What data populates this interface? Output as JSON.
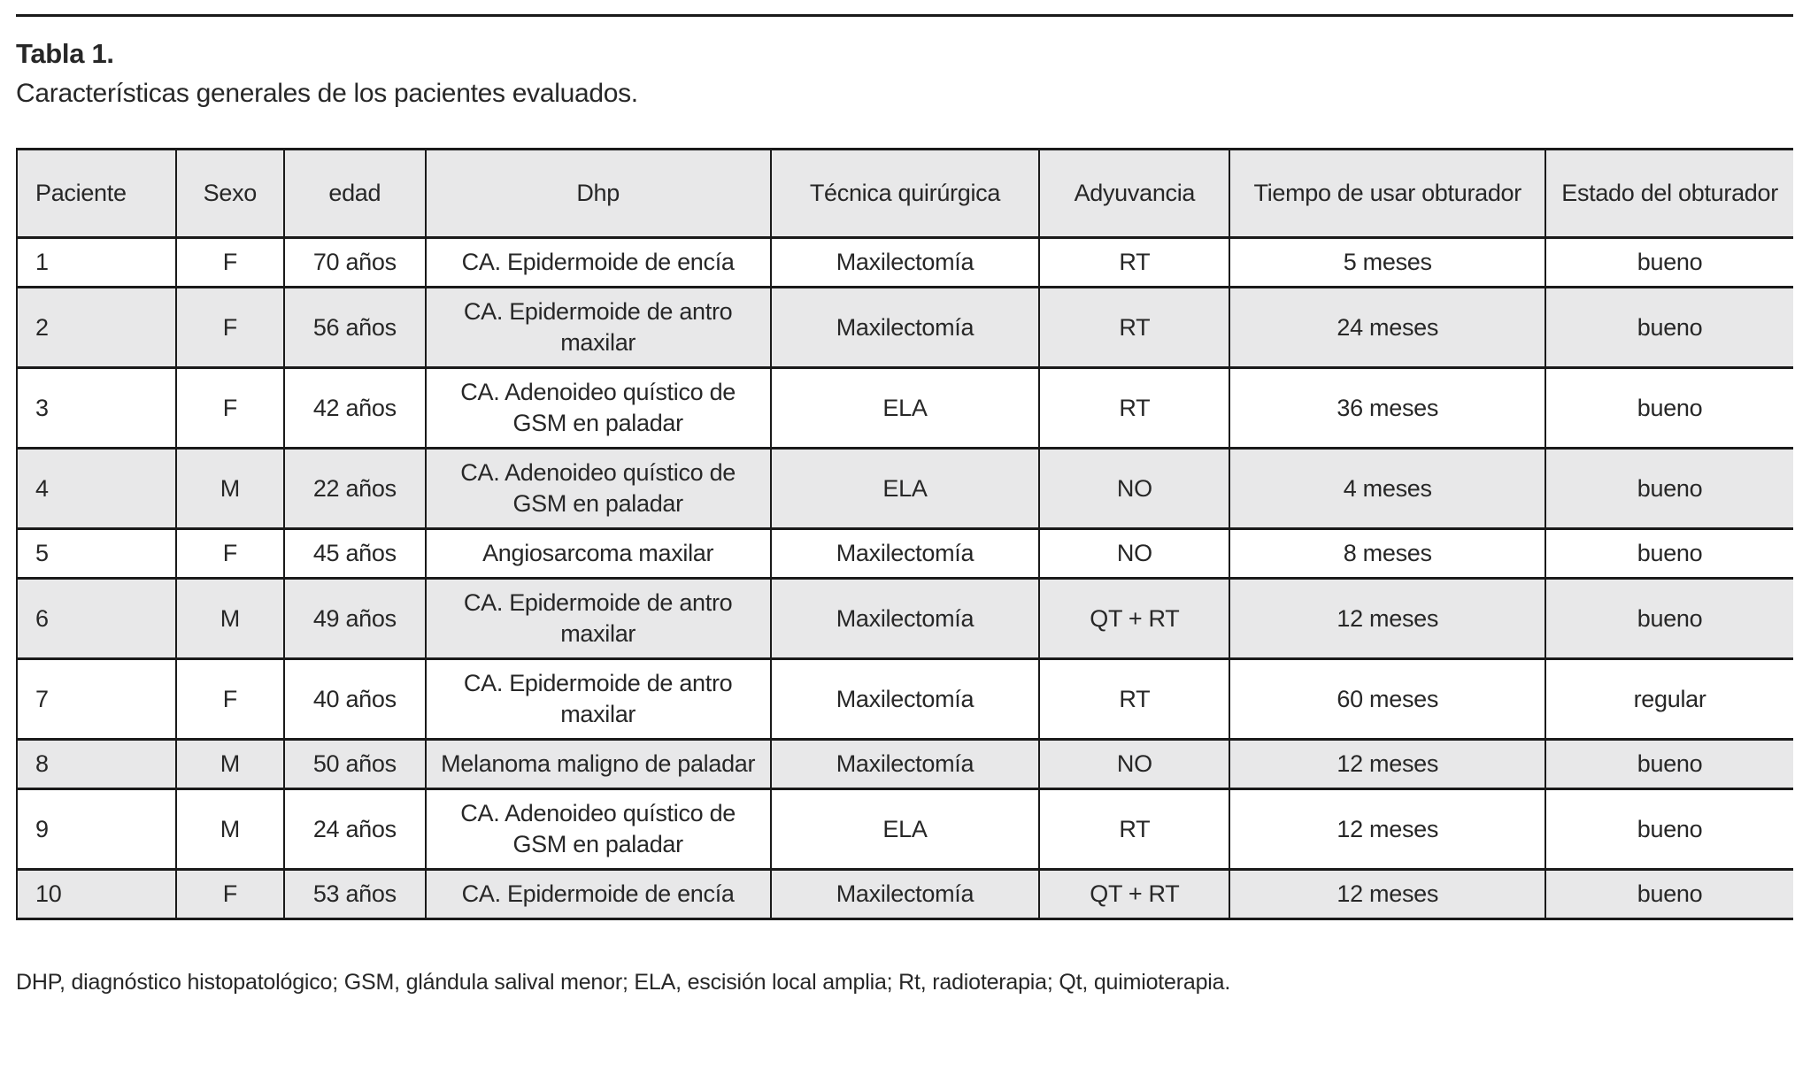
{
  "page": {
    "title_label": "Tabla 1.",
    "subtitle": "Características generales de los pacientes evaluados.",
    "footnote": "DHP, diagnóstico histopatológico; GSM, glándula salival menor; ELA, escisión local amplia; Rt, radioterapia; Qt, quimioterapia."
  },
  "table": {
    "headers": [
      "Paciente",
      "Sexo",
      "edad",
      "Dhp",
      "Técnica quirúrgica",
      "Adyuvancia",
      "Tiempo de usar obturador",
      "Estado del obturador"
    ],
    "rows": [
      [
        "1",
        "F",
        "70 años",
        "CA. Epidermoide de encía",
        "Maxilectomía",
        "RT",
        "5 meses",
        "bueno"
      ],
      [
        "2",
        "F",
        "56 años",
        "CA. Epidermoide de antro maxilar",
        "Maxilectomía",
        "RT",
        "24 meses",
        "bueno"
      ],
      [
        "3",
        "F",
        "42 años",
        "CA. Adenoideo quístico de GSM en paladar",
        "ELA",
        "RT",
        "36 meses",
        "bueno"
      ],
      [
        "4",
        "M",
        "22 años",
        "CA. Adenoideo quístico de GSM en paladar",
        "ELA",
        "NO",
        "4 meses",
        "bueno"
      ],
      [
        "5",
        "F",
        "45 años",
        "Angiosarcoma maxilar",
        "Maxilectomía",
        "NO",
        "8 meses",
        "bueno"
      ],
      [
        "6",
        "M",
        "49 años",
        "CA. Epidermoide de antro maxilar",
        "Maxilectomía",
        "QT + RT",
        "12 meses",
        "bueno"
      ],
      [
        "7",
        "F",
        "40 años",
        "CA. Epidermoide de antro maxilar",
        "Maxilectomía",
        "RT",
        "60 meses",
        "regular"
      ],
      [
        "8",
        "M",
        "50 años",
        "Melanoma maligno de paladar",
        "Maxilectomía",
        "NO",
        "12 meses",
        "bueno"
      ],
      [
        "9",
        "M",
        "24 años",
        "CA. Adenoideo quístico de GSM en paladar",
        "ELA",
        "RT",
        "12 meses",
        "bueno"
      ],
      [
        "10",
        "F",
        "53 años",
        "CA. Epidermoide de encía",
        "Maxilectomía",
        "QT + RT",
        "12 meses",
        "bueno"
      ]
    ],
    "colors": {
      "row_alt_bg": "#e8e8e9",
      "border": "#1a1a1a",
      "text": "#272727"
    }
  }
}
